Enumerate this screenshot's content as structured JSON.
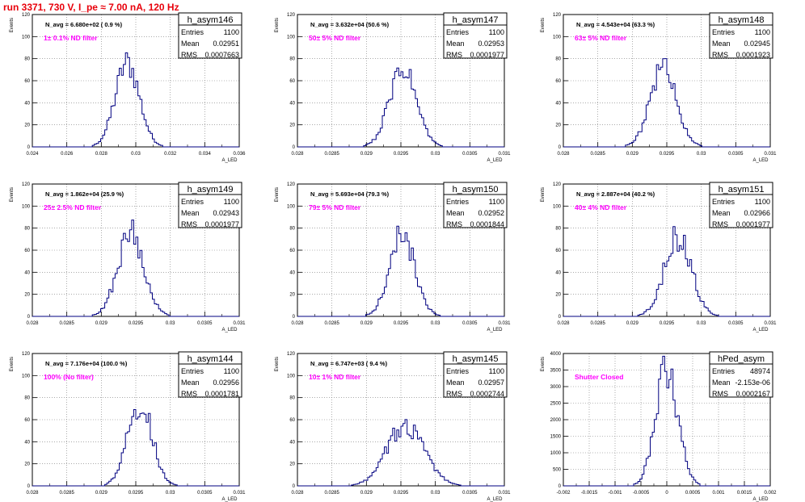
{
  "page_title": "run 3371,   730 V, I_pe ≈ 7.00 nA, 120 Hz",
  "colors": {
    "hist_line": "#000080",
    "annotation": "#ff00ff",
    "title": "#e8000b",
    "grid": "#777777"
  },
  "stats_labels": {
    "entries": "Entries",
    "mean": "Mean",
    "rms": "RMS"
  },
  "chart_data": [
    {
      "type": "histogram",
      "name": "h_asym146",
      "nevt": "N_avg = 6.680e+02 ( 0.9 %)",
      "filter": "1± 0.1% ND filter",
      "entries": "1100",
      "mean": "0.02951",
      "rms": "0.0007663",
      "ylabel": "Events",
      "xlabel": "A_LED",
      "xlim": [
        0.024,
        0.036
      ],
      "ylim": [
        0,
        120
      ],
      "xticks": [
        "0.024",
        "0.026",
        "0.028",
        "0.03",
        "0.032",
        "0.034",
        "0.036"
      ],
      "xtick_values": [
        0.024,
        0.026,
        0.028,
        0.03,
        0.032,
        0.034,
        0.036
      ],
      "yticks": [
        "0",
        "20",
        "40",
        "60",
        "80",
        "100",
        "120"
      ],
      "ytick_values": [
        0,
        20,
        40,
        60,
        80,
        100,
        120
      ],
      "mu": 0.02951,
      "sigma": 0.0007,
      "peak": 76,
      "grid": true
    },
    {
      "type": "histogram",
      "name": "h_asym147",
      "nevt": "N_avg = 3.632e+04 (50.6 %)",
      "filter": "50± 5% ND filter",
      "entries": "1100",
      "mean": "0.02953",
      "rms": "0.0001977",
      "ylabel": "Events",
      "xlabel": "A_LED",
      "xlim": [
        0.028,
        0.031
      ],
      "ylim": [
        0,
        120
      ],
      "xticks": [
        "0.028",
        "0.0285",
        "0.029",
        "0.0295",
        "0.03",
        "0.0305",
        "0.031"
      ],
      "xtick_values": [
        0.028,
        0.0285,
        0.029,
        0.0295,
        0.03,
        0.0305,
        0.031
      ],
      "yticks": [
        "0",
        "20",
        "40",
        "60",
        "80",
        "100",
        "120"
      ],
      "ytick_values": [
        0,
        20,
        40,
        60,
        80,
        100,
        120
      ],
      "mu": 0.02953,
      "sigma": 0.000195,
      "peak": 70,
      "grid": true
    },
    {
      "type": "histogram",
      "name": "h_asym148",
      "nevt": "N_avg = 4.543e+04 (63.3 %)",
      "filter": "63± 5% ND filter",
      "entries": "1100",
      "mean": "0.02945",
      "rms": "0.0001923",
      "ylabel": "Events",
      "xlabel": "A_LED",
      "xlim": [
        0.028,
        0.031
      ],
      "ylim": [
        0,
        120
      ],
      "xticks": [
        "0.028",
        "0.0285",
        "0.029",
        "0.0295",
        "0.03",
        "0.0305",
        "0.031"
      ],
      "xtick_values": [
        0.028,
        0.0285,
        0.029,
        0.0295,
        0.03,
        0.0305,
        0.031
      ],
      "yticks": [
        "0",
        "20",
        "40",
        "60",
        "80",
        "100",
        "120"
      ],
      "ytick_values": [
        0,
        20,
        40,
        60,
        80,
        100,
        120
      ],
      "mu": 0.02945,
      "sigma": 0.00019,
      "peak": 72,
      "grid": true
    },
    {
      "type": "histogram",
      "name": "h_asym149",
      "nevt": "N_avg = 1.862e+04 (25.9 %)",
      "filter": "25± 2.5% ND filter",
      "entries": "1100",
      "mean": "0.02943",
      "rms": "0.0001977",
      "ylabel": "Events",
      "xlabel": "A_LED",
      "xlim": [
        0.028,
        0.031
      ],
      "ylim": [
        0,
        120
      ],
      "xticks": [
        "0.028",
        "0.0285",
        "0.029",
        "0.0295",
        "0.03",
        "0.0305",
        "0.031"
      ],
      "xtick_values": [
        0.028,
        0.0285,
        0.029,
        0.0295,
        0.03,
        0.0305,
        0.031
      ],
      "yticks": [
        "0",
        "20",
        "40",
        "60",
        "80",
        "100",
        "120"
      ],
      "ytick_values": [
        0,
        20,
        40,
        60,
        80,
        100,
        120
      ],
      "mu": 0.02943,
      "sigma": 0.00019,
      "peak": 76,
      "grid": true
    },
    {
      "type": "histogram",
      "name": "h_asym150",
      "nevt": "N_avg = 5.693e+04 (79.3 %)",
      "filter": "79± 5% ND filter",
      "entries": "1100",
      "mean": "0.02952",
      "rms": "0.0001844",
      "ylabel": "Events",
      "xlabel": "A_LED",
      "xlim": [
        0.028,
        0.031
      ],
      "ylim": [
        0,
        120
      ],
      "xticks": [
        "0.028",
        "0.0285",
        "0.029",
        "0.0295",
        "0.03",
        "0.0305",
        "0.031"
      ],
      "xtick_values": [
        0.028,
        0.0285,
        0.029,
        0.0295,
        0.03,
        0.0305,
        0.031
      ],
      "yticks": [
        "0",
        "20",
        "40",
        "60",
        "80",
        "100",
        "120"
      ],
      "ytick_values": [
        0,
        20,
        40,
        60,
        80,
        100,
        120
      ],
      "mu": 0.02952,
      "sigma": 0.000182,
      "peak": 74,
      "grid": true
    },
    {
      "type": "histogram",
      "name": "h_asym151",
      "nevt": "N_avg = 2.887e+04 (40.2 %)",
      "filter": "40± 4% ND filter",
      "entries": "1100",
      "mean": "0.02966",
      "rms": "0.0001977",
      "ylabel": "Events",
      "xlabel": "A_LED",
      "xlim": [
        0.028,
        0.031
      ],
      "ylim": [
        0,
        120
      ],
      "xticks": [
        "0.028",
        "0.0285",
        "0.029",
        "0.0295",
        "0.03",
        "0.0305",
        "0.031"
      ],
      "xtick_values": [
        0.028,
        0.0285,
        0.029,
        0.0295,
        0.03,
        0.0305,
        0.031
      ],
      "yticks": [
        "0",
        "20",
        "40",
        "60",
        "80",
        "100",
        "120"
      ],
      "ytick_values": [
        0,
        20,
        40,
        60,
        80,
        100,
        120
      ],
      "mu": 0.02966,
      "sigma": 0.000195,
      "peak": 72,
      "grid": true
    },
    {
      "type": "histogram",
      "name": "h_asym144",
      "nevt": "N_avg = 7.176e+04 (100.0 %)",
      "filter": "100% (No filter)",
      "entries": "1100",
      "mean": "0.02956",
      "rms": "0.0001781",
      "ylabel": "Events",
      "xlabel": "A_LED",
      "xlim": [
        0.028,
        0.031
      ],
      "ylim": [
        0,
        120
      ],
      "xticks": [
        "0.028",
        "0.0285",
        "0.029",
        "0.0295",
        "0.03",
        "0.0305",
        "0.031"
      ],
      "xtick_values": [
        0.028,
        0.0285,
        0.029,
        0.0295,
        0.03,
        0.0305,
        0.031
      ],
      "yticks": [
        "0",
        "20",
        "40",
        "60",
        "80",
        "100",
        "120"
      ],
      "ytick_values": [
        0,
        20,
        40,
        60,
        80,
        100,
        120
      ],
      "mu": 0.02956,
      "sigma": 0.000176,
      "peak": 76,
      "grid": true
    },
    {
      "type": "histogram",
      "name": "h_asym145",
      "nevt": "N_avg = 6.747e+03 ( 9.4 %)",
      "filter": "10± 1% ND filter",
      "entries": "1100",
      "mean": "0.02957",
      "rms": "0.0002744",
      "ylabel": "Events",
      "xlabel": "A_LED",
      "xlim": [
        0.028,
        0.031
      ],
      "ylim": [
        0,
        120
      ],
      "xticks": [
        "0.028",
        "0.0285",
        "0.029",
        "0.0295",
        "0.03",
        "0.0305",
        "0.031"
      ],
      "xtick_values": [
        0.028,
        0.0285,
        0.029,
        0.0295,
        0.03,
        0.0305,
        0.031
      ],
      "yticks": [
        "0",
        "20",
        "40",
        "60",
        "80",
        "100",
        "120"
      ],
      "ytick_values": [
        0,
        20,
        40,
        60,
        80,
        100,
        120
      ],
      "mu": 0.02957,
      "sigma": 0.00027,
      "peak": 55,
      "grid": true
    },
    {
      "type": "histogram",
      "name": "hPed_asym",
      "nevt": "",
      "filter": "Shutter Closed",
      "entries": "48974",
      "mean": "-2.153e-06",
      "rms": "0.0002167",
      "ylabel": "Events",
      "xlabel": "A_LED",
      "xlim": [
        -0.002,
        0.002
      ],
      "ylim": [
        0,
        4000
      ],
      "xticks": [
        "-0.002",
        "-0.0015",
        "-0.001",
        "-0.0005",
        "0",
        "0.0005",
        "0.001",
        "0.0015",
        "0.002"
      ],
      "xtick_values": [
        -0.002,
        -0.0015,
        -0.001,
        -0.0005,
        0,
        0.0005,
        0.001,
        0.0015,
        0.002
      ],
      "yticks": [
        "0",
        "500",
        "1000",
        "1500",
        "2000",
        "2500",
        "3000",
        "3500",
        "4000"
      ],
      "ytick_values": [
        0,
        500,
        1000,
        1500,
        2000,
        2500,
        3000,
        3500,
        4000
      ],
      "mu": 0.0,
      "sigma": 0.000215,
      "peak": 3500,
      "grid": true
    }
  ]
}
